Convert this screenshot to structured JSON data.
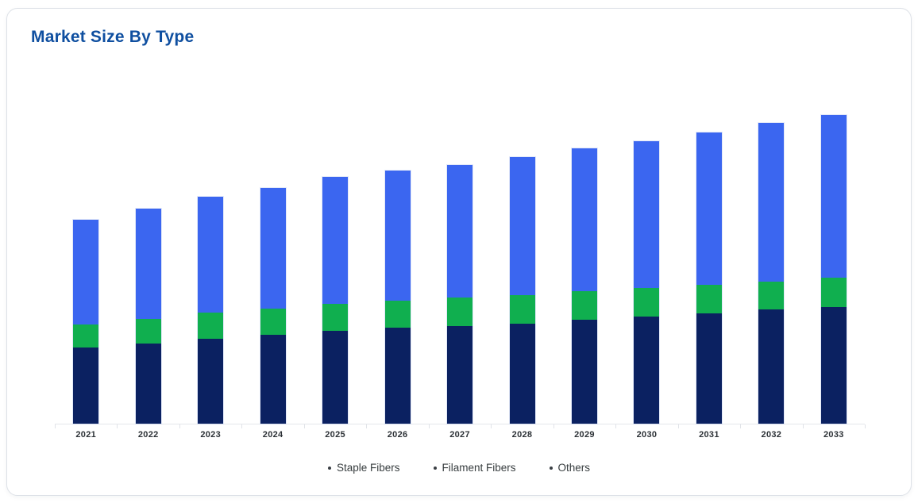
{
  "card": {
    "title": "Market Size By Type"
  },
  "colors": {
    "title": "#0f4fa0",
    "card_border": "#dde1e7",
    "axis_line": "#e4e6ea",
    "x_label": "#2c3136",
    "legend_text": "#373d3f",
    "legend_marker": "#3a3f44",
    "staple_fibers": "#0b2161",
    "filament_fibers": "#10af4f",
    "others": "#3b66f0"
  },
  "legend": {
    "items": [
      {
        "id": "staple-fibers",
        "label": "Staple Fibers"
      },
      {
        "id": "filament-fibers",
        "label": "Filament Fibers"
      },
      {
        "id": "others",
        "label": "Others"
      }
    ]
  },
  "chart_data": {
    "type": "bar",
    "stacked": true,
    "title": "Market Size By Type",
    "xlabel": "",
    "ylabel": "",
    "categories": [
      "2021",
      "2022",
      "2023",
      "2024",
      "2025",
      "2026",
      "2027",
      "2028",
      "2029",
      "2030",
      "2031",
      "2032",
      "2033"
    ],
    "series": [
      {
        "name": "Staple Fibers",
        "color": "#0b2161",
        "values": [
          96,
          101,
          107,
          112,
          117,
          121,
          123,
          126,
          131,
          135,
          139,
          144,
          147
        ]
      },
      {
        "name": "Filament Fibers",
        "color": "#10af4f",
        "values": [
          29,
          31,
          33,
          33,
          34,
          34,
          36,
          36,
          36,
          36,
          36,
          35,
          37
        ]
      },
      {
        "name": "Others",
        "color": "#3b66f0",
        "values": [
          132,
          139,
          146,
          152,
          160,
          164,
          167,
          174,
          180,
          185,
          192,
          200,
          205
        ]
      }
    ],
    "totals": [
      257,
      271,
      286,
      297,
      311,
      319,
      326,
      336,
      347,
      356,
      367,
      379,
      389
    ],
    "ylim": [
      0,
      434
    ],
    "value_units": "relative units (y-axis unlabeled in source; values estimated from bar heights in px)",
    "legend_position": "bottom",
    "grid": false,
    "y_axis_labels_visible": false
  }
}
